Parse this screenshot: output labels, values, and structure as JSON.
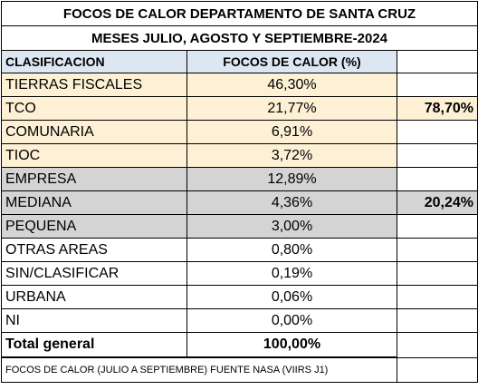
{
  "title_line1": "FOCOS DE CALOR DEPARTAMENTO DE SANTA CRUZ",
  "title_line2": "MESES JULIO, AGOSTO Y SEPTIEMBRE-2024",
  "headers": {
    "clasificacion": "CLASIFICACION",
    "focos": "FOCOS DE CALOR (%)"
  },
  "rows": [
    {
      "label": "TIERRAS FISCALES",
      "value": "46,30%",
      "group": "yellow"
    },
    {
      "label": "TCO",
      "value": "21,77%",
      "group": "yellow"
    },
    {
      "label": "COMUNARIA",
      "value": "6,91%",
      "group": "yellow"
    },
    {
      "label": "TIOC",
      "value": "3,72%",
      "group": "yellow"
    },
    {
      "label": "EMPRESA",
      "value": "12,89%",
      "group": "gray"
    },
    {
      "label": "MEDIANA",
      "value": "4,36%",
      "group": "gray"
    },
    {
      "label": "PEQUENA",
      "value": "3,00%",
      "group": "gray"
    },
    {
      "label": "OTRAS AREAS",
      "value": "0,80%",
      "group": "none"
    },
    {
      "label": "SIN/CLASIFICAR",
      "value": "0,19%",
      "group": "none"
    },
    {
      "label": "URBANA",
      "value": "0,06%",
      "group": "none"
    },
    {
      "label": "NI",
      "value": "0,00%",
      "group": "none"
    }
  ],
  "subtotals": {
    "yellow": "78,70%",
    "gray": "20,24%"
  },
  "total": {
    "label": "Total general",
    "value": "100,00%"
  },
  "footer": "FOCOS DE CALOR (JULIO A SEPTIEMBRE) FUENTE NASA (VIIRS J1)",
  "colors": {
    "yellow_fill": "#fdf0d4",
    "gray_fill": "#d4d4d4",
    "header_fill": "#dde7f2"
  }
}
